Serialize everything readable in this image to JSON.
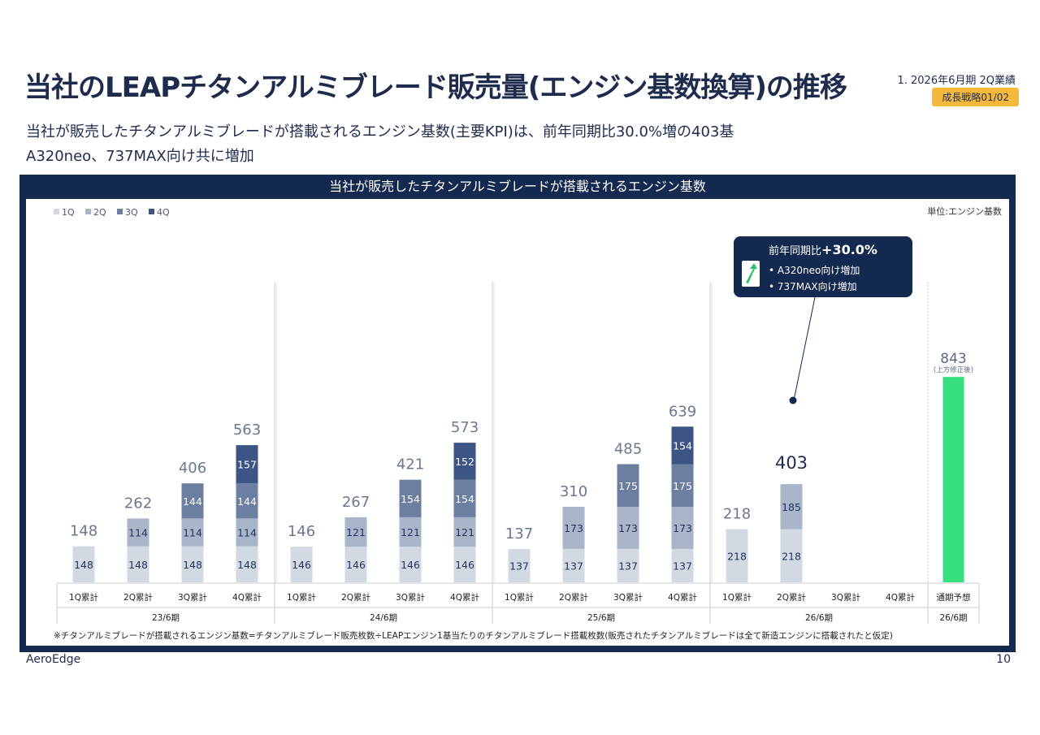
{
  "slide": {
    "title": "当社のLEAPチタンアルミブレード販売量(エンジン基数換算)の推移",
    "section_label": "1. 2026年6月期 2Q業績",
    "badge": "成長戦略01/02",
    "subtitle_line1": "当社が販売したチタンアルミブレードが搭載されるエンジン基数(主要KPI)は、前年同期比30.0%増の403基",
    "subtitle_line2": "A320neo、737MAX向け共に増加",
    "company": "AeroEdge",
    "page_number": "10"
  },
  "panel": {
    "title": "当社が販売したチタンアルミブレードが搭載されるエンジン基数"
  },
  "chart_data": {
    "type": "bar",
    "stacked": true,
    "unit_label": "単位:エンジン基数",
    "legend": [
      "1Q",
      "2Q",
      "3Q",
      "4Q"
    ],
    "legend_placement": "top-left",
    "colors": {
      "1Q": "#d3d9e2",
      "2Q": "#a9b5c8",
      "3Q": "#6d7fa0",
      "4Q": "#3d5585",
      "forecast": "#36e07f"
    },
    "ylim": [
      0,
      900
    ],
    "periods": [
      {
        "name": "23/6期",
        "groups": [
          {
            "label": "1Q累計",
            "segments": [
              148
            ],
            "total": 148
          },
          {
            "label": "2Q累計",
            "segments": [
              148,
              114
            ],
            "total": 262
          },
          {
            "label": "3Q累計",
            "segments": [
              148,
              114,
              144
            ],
            "total": 406
          },
          {
            "label": "4Q累計",
            "segments": [
              148,
              114,
              144,
              157
            ],
            "total": 563
          }
        ]
      },
      {
        "name": "24/6期",
        "groups": [
          {
            "label": "1Q累計",
            "segments": [
              146
            ],
            "total": 146
          },
          {
            "label": "2Q累計",
            "segments": [
              146,
              121
            ],
            "total": 267
          },
          {
            "label": "3Q累計",
            "segments": [
              146,
              121,
              154
            ],
            "total": 421
          },
          {
            "label": "4Q累計",
            "segments": [
              146,
              121,
              154,
              152
            ],
            "total": 573
          }
        ]
      },
      {
        "name": "25/6期",
        "groups": [
          {
            "label": "1Q累計",
            "segments": [
              137
            ],
            "total": 137
          },
          {
            "label": "2Q累計",
            "segments": [
              137,
              173
            ],
            "total": 310
          },
          {
            "label": "3Q累計",
            "segments": [
              137,
              173,
              175
            ],
            "total": 485
          },
          {
            "label": "4Q累計",
            "segments": [
              137,
              173,
              175,
              154
            ],
            "total": 639
          }
        ]
      },
      {
        "name": "26/6期",
        "groups": [
          {
            "label": "1Q累計",
            "segments": [
              218
            ],
            "total": 218
          },
          {
            "label": "2Q累計",
            "segments": [
              218,
              185
            ],
            "total": 403
          },
          {
            "label": "3Q累計",
            "segments": [],
            "total": null
          },
          {
            "label": "4Q累計",
            "segments": [],
            "total": null
          }
        ]
      },
      {
        "name": "26/6期",
        "groups": [
          {
            "label": "通期予想",
            "segments": [
              843
            ],
            "total": 843,
            "forecast": true,
            "note": "(上方修正後)"
          }
        ]
      }
    ],
    "callout": {
      "title": "前年同期比",
      "value": "+30.0%",
      "bullets": [
        "A320neo向け増加",
        "737MAX向け増加"
      ]
    },
    "footnote": "※チタンアルミブレードが搭載されるエンジン基数=チタンアルミブレード販売枚数÷LEAPエンジン1基当たりのチタンアルミブレード搭載枚数(販売されたチタンアルミブレードは全て新造エンジンに搭載されたと仮定)"
  }
}
